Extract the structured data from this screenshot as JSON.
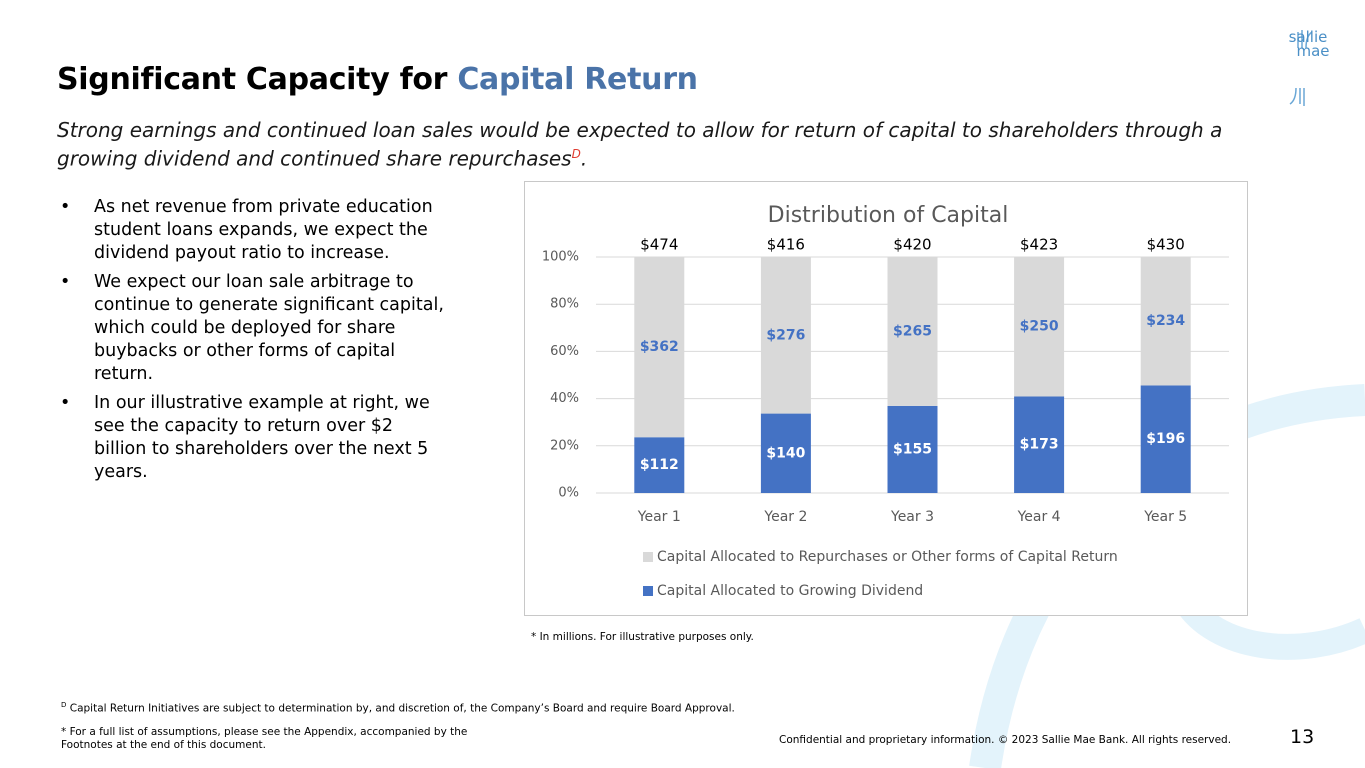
{
  "header": {
    "title_part1": "Significant Capacity for ",
    "title_part2": "Capital Return",
    "subtitle": "Strong earnings and continued loan sales would be expected to allow for return of capital to shareholders through a growing dividend and continued share repurchases",
    "subtitle_sup": "D",
    "subtitle_end": "."
  },
  "logo": {
    "line1": "sallie",
    "line2": "mae"
  },
  "bullets": [
    "As net revenue from private education student loans expands, we expect the dividend payout ratio to increase.",
    "We expect our loan sale arbitrage to continue to generate significant capital, which could be deployed for share buybacks or other forms of capital return.",
    "In our illustrative example at right, we see the capacity to return over $2 billion to shareholders over the next 5 years."
  ],
  "chart_data": {
    "type": "bar",
    "stacking": "percent",
    "title": "Distribution of Capital",
    "categories": [
      "Year 1",
      "Year 2",
      "Year 3",
      "Year 4",
      "Year 5"
    ],
    "series": [
      {
        "name": "Capital Allocated to Growing Dividend",
        "color": "#4472c4",
        "values": [
          112,
          140,
          155,
          173,
          196
        ],
        "value_labels": [
          "$112",
          "$140",
          "$155",
          "$173",
          "$196"
        ]
      },
      {
        "name": "Capital Allocated to Repurchases or Other forms of Capital Return",
        "color": "#d9d9d9",
        "values": [
          362,
          276,
          265,
          250,
          234
        ],
        "value_labels": [
          "$362",
          "$276",
          "$265",
          "$250",
          "$234"
        ]
      }
    ],
    "totals": [
      474,
      416,
      420,
      423,
      430
    ],
    "total_labels": [
      "$474",
      "$416",
      "$420",
      "$423",
      "$430"
    ],
    "ylim": [
      0,
      100
    ],
    "yticks": [
      {
        "value": 0,
        "label": "0%"
      },
      {
        "value": 20,
        "label": "20%"
      },
      {
        "value": 40,
        "label": "40%"
      },
      {
        "value": 60,
        "label": "60%"
      },
      {
        "value": 80,
        "label": "80%"
      },
      {
        "value": 100,
        "label": "100%"
      }
    ],
    "grid": true
  },
  "chart_note": "* In millions. For illustrative purposes only.",
  "footnotes": {
    "sup": "D",
    "note1": "Capital Return Initiatives are subject to determination by, and discretion of, the Company’s Board and require Board Approval.",
    "note2": "* For a full list of assumptions, please see the Appendix, accompanied by the Footnotes at the end of this document."
  },
  "footer": {
    "confidential": "Confidential and proprietary information. © 2023 Sallie Mae Bank. All rights reserved.",
    "page": "13"
  }
}
